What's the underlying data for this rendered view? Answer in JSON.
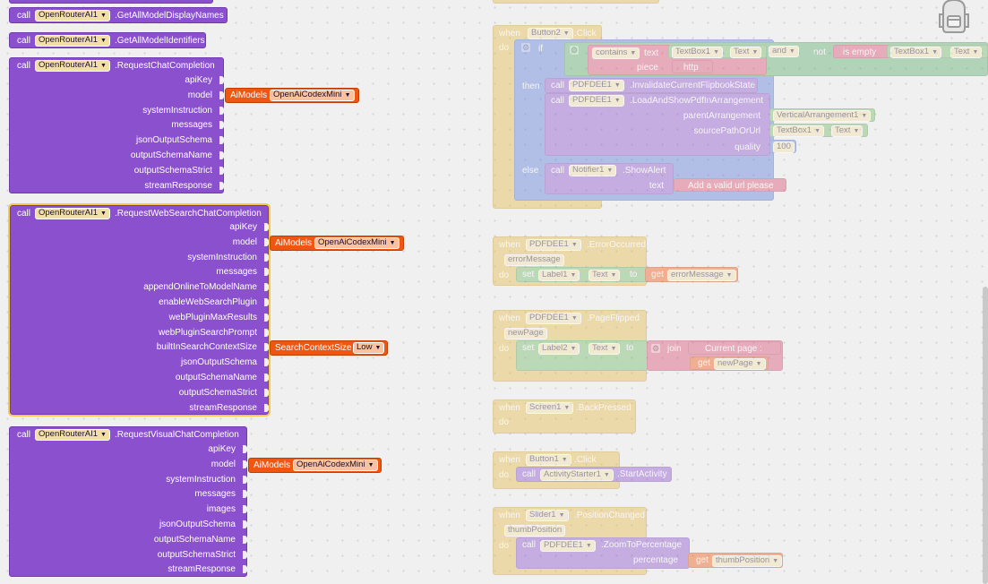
{
  "blocks": {
    "call_kw": "call",
    "component": "OpenRouterAI1",
    "get_display_names": ".GetAllModelDisplayNames",
    "get_identifiers": ".GetAllModelIdentifiers",
    "chat": {
      "method": ".RequestChatCompletion",
      "params": [
        "apiKey",
        "model",
        "systemInstruction",
        "messages",
        "jsonOutputSchema",
        "outputSchemaName",
        "outputSchemaStrict",
        "streamResponse"
      ]
    },
    "web": {
      "method": ".RequestWebSearchChatCompletion",
      "params": [
        "apiKey",
        "model",
        "systemInstruction",
        "messages",
        "appendOnlineToModelName",
        "enableWebSearchPlugin",
        "webPluginMaxResults",
        "webPluginSearchPrompt",
        "builtInSearchContextSize",
        "jsonOutputSchema",
        "outputSchemaName",
        "outputSchemaStrict",
        "streamResponse"
      ]
    },
    "visual": {
      "method": ".RequestVisualChatCompletion",
      "params": [
        "apiKey",
        "model",
        "systemInstruction",
        "messages",
        "images",
        "jsonOutputSchema",
        "outputSchemaName",
        "outputSchemaStrict",
        "streamResponse"
      ]
    },
    "aimodels": {
      "label": "AiModels",
      "value": "OpenAiCodexMini"
    },
    "search_ctx": {
      "label": "SearchContextSize",
      "value": "Low"
    }
  },
  "events": {
    "when": "when",
    "do": "do",
    "then": "then",
    "else": "else",
    "if": "if",
    "set": "set",
    "to": "to",
    "get": "get",
    "call": "call",
    "btn2": {
      "comp": "Button2",
      "event": ".Click"
    },
    "contains": "contains",
    "text_kw": "text",
    "piece": "piece",
    "http": "http",
    "textbox1": "TextBox1",
    "text_prop": "Text",
    "and": "and",
    "not": "not",
    "is_empty": "is empty",
    "pdf": "PDFDEE1",
    "invalidate": ".InvalidateCurrentFlipbookState",
    "load_show": ".LoadAndShowPdfInArrangement",
    "parent_arr": "parentArrangement",
    "vert_arr": "VerticalArrangement1",
    "source": "sourcePathOrUrl",
    "quality": "quality",
    "quality_val": "100",
    "notifier": "Notifier1",
    "show_alert": ".ShowAlert",
    "alert_text": "Add a valid url please",
    "err_event": ".ErrorOccurred",
    "err_param": "errorMessage",
    "label1": "Label1",
    "label2": "Label2",
    "page_event": ".PageFlipped",
    "page_param": "newPage",
    "join": "join",
    "current_page": "Current page : ",
    "screen1": {
      "comp": "Screen1",
      "event": ".BackPressed"
    },
    "btn1": {
      "comp": "Button1",
      "event": ".Click"
    },
    "activity": "ActivityStarter1",
    "start_activity": ".StartActivity",
    "slider": {
      "comp": "Slider1",
      "event": ".PositionChanged",
      "param": "thumbPosition"
    },
    "zoom": ".ZoomToPercentage",
    "percentage": "percentage",
    "thumb": "thumbPosition"
  },
  "icons": [
    "backpack-icon",
    "dropdown-arrow-icon",
    "mutator-gear-icon"
  ],
  "colors": {
    "procedure": "#8b50ce",
    "enum": "#ef5612",
    "event": "#e8b949",
    "selected_outline": "#f8c84a"
  }
}
